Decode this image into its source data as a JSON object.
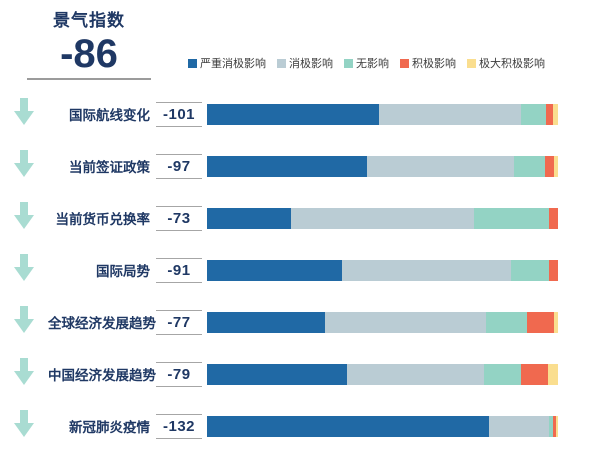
{
  "header": {
    "title": "景气指数",
    "value": "-86"
  },
  "colors": {
    "navy": "#1F3864",
    "arrow": "#A9DCD2",
    "underline": "#9b9b9b",
    "value_line": "#a6a6a6",
    "legend_text": "#3d3d3d"
  },
  "legend": [
    {
      "label": "严重消极影响",
      "color": "#2069A5"
    },
    {
      "label": "消极影响",
      "color": "#BACCD4"
    },
    {
      "label": "无影响",
      "color": "#93D3C4"
    },
    {
      "label": "积极影响",
      "color": "#F0694F"
    },
    {
      "label": "极大积极影响",
      "color": "#FADE8F"
    }
  ],
  "chart_data": {
    "type": "bar",
    "orientation": "horizontal",
    "stacked_percent": true,
    "title": "景气指数",
    "index_value": -86,
    "legend_position": "top",
    "grid": false,
    "series": [
      "严重消极影响",
      "消极影响",
      "无影响",
      "积极影响",
      "极大积极影响"
    ],
    "series_colors": [
      "#2069A5",
      "#BACCD4",
      "#93D3C4",
      "#F0694F",
      "#FADE8F"
    ],
    "rows": [
      {
        "label": "国际航线变化",
        "value": "-101",
        "trend": "down",
        "segments": [
          49.0,
          40.5,
          7.1,
          1.9,
          1.5
        ]
      },
      {
        "label": "当前签证政策",
        "value": "-97",
        "trend": "down",
        "segments": [
          45.5,
          42.0,
          8.8,
          2.7,
          1.0
        ]
      },
      {
        "label": "当前货币兑换率",
        "value": "-73",
        "trend": "down",
        "segments": [
          23.8,
          52.3,
          21.3,
          2.6,
          0
        ]
      },
      {
        "label": "国际局势",
        "value": "-91",
        "trend": "down",
        "segments": [
          38.4,
          48.3,
          10.7,
          2.6,
          0
        ]
      },
      {
        "label": "全球经济发展趋势",
        "value": "-77",
        "trend": "down",
        "segments": [
          33.5,
          45.9,
          11.9,
          7.7,
          1.0
        ]
      },
      {
        "label": "中国经济发展趋势",
        "value": "-79",
        "trend": "down",
        "segments": [
          40.0,
          38.9,
          10.6,
          7.6,
          2.9
        ]
      },
      {
        "label": "新冠肺炎疫情",
        "value": "-132",
        "trend": "down",
        "segments": [
          80.2,
          17.1,
          1.3,
          0.8,
          0.6
        ]
      }
    ]
  }
}
